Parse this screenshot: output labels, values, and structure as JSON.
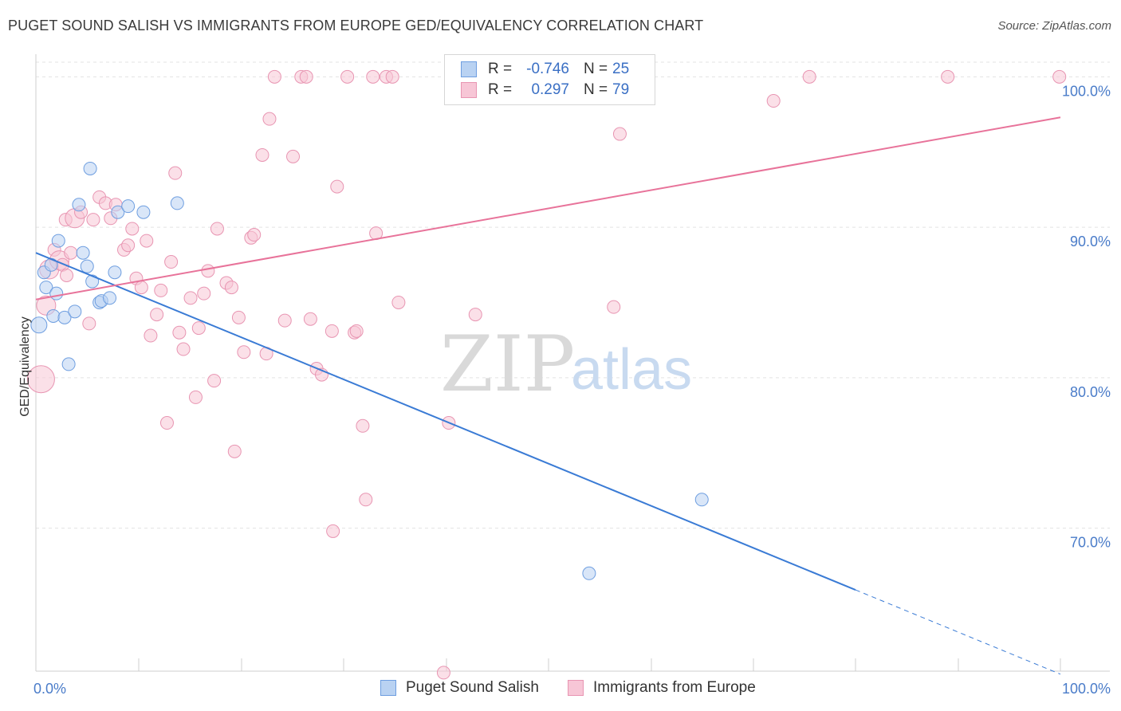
{
  "title": "PUGET SOUND SALISH VS IMMIGRANTS FROM EUROPE GED/EQUIVALENCY CORRELATION CHART",
  "source": "Source: ZipAtlas.com",
  "watermark": {
    "zip": "ZIP",
    "atlas": "atlas"
  },
  "colors": {
    "blue": "#3a7bd5",
    "blue_fill": "#b9d2f2",
    "pink": "#e8739a",
    "pink_fill": "#f7c6d6",
    "tick_text": "#4a7cc9"
  },
  "legend": {
    "rows": [
      {
        "r_label": "R =",
        "r_value": "-0.746",
        "n_label": "N =",
        "n_value": "25"
      },
      {
        "r_label": "R =",
        "r_value": "0.297",
        "n_label": "N =",
        "n_value": "79"
      }
    ]
  },
  "bottom_legend": [
    "Puget Sound Salish",
    "Immigrants from Europe"
  ],
  "chart_data": {
    "type": "scatter",
    "title": "PUGET SOUND SALISH VS IMMIGRANTS FROM EUROPE GED/EQUIVALENCY CORRELATION CHART",
    "xlabel": "",
    "ylabel": "GED/Equivalency",
    "x_tick_labels": [
      "0.0%",
      "100.0%"
    ],
    "y_tick_labels": [
      "100.0%",
      "90.0%",
      "80.0%",
      "70.0%"
    ],
    "y_ticks": [
      100,
      90,
      80,
      70
    ],
    "xlim": [
      0,
      100
    ],
    "ylim": [
      60.5,
      101.5
    ],
    "grid": true,
    "legend_position": "top-center",
    "series": [
      {
        "name": "Puget Sound Salish",
        "color": "#3a7bd5",
        "trend": {
          "x": [
            0,
            80
          ],
          "y": [
            88.3,
            65.9
          ],
          "dashed_to": [
            100,
            60.3
          ]
        },
        "points": [
          [
            0.3,
            83.5
          ],
          [
            0.8,
            87.0
          ],
          [
            1.0,
            86.0
          ],
          [
            1.5,
            87.5
          ],
          [
            1.7,
            84.1
          ],
          [
            2.0,
            85.6
          ],
          [
            2.2,
            89.1
          ],
          [
            2.8,
            84.0
          ],
          [
            3.2,
            80.9
          ],
          [
            3.8,
            84.4
          ],
          [
            4.2,
            91.5
          ],
          [
            4.6,
            88.3
          ],
          [
            5.0,
            87.4
          ],
          [
            5.3,
            93.9
          ],
          [
            5.5,
            86.4
          ],
          [
            6.2,
            85.0
          ],
          [
            6.4,
            85.1
          ],
          [
            7.2,
            85.3
          ],
          [
            7.7,
            87.0
          ],
          [
            8.0,
            91.0
          ],
          [
            9.0,
            91.4
          ],
          [
            10.5,
            91.0
          ],
          [
            13.8,
            91.6
          ],
          [
            54.0,
            67.0
          ],
          [
            65.0,
            71.9
          ]
        ]
      },
      {
        "name": "Immigrants from Europe",
        "color": "#e8739a",
        "trend": {
          "x": [
            0,
            100
          ],
          "y": [
            85.2,
            97.3
          ]
        },
        "points": [
          [
            0.5,
            79.9
          ],
          [
            1.0,
            84.8
          ],
          [
            1.3,
            87.2
          ],
          [
            1.8,
            88.5
          ],
          [
            2.3,
            87.8
          ],
          [
            2.6,
            87.5
          ],
          [
            2.9,
            90.5
          ],
          [
            3.4,
            88.3
          ],
          [
            3.8,
            90.6
          ],
          [
            4.4,
            91.0
          ],
          [
            5.2,
            83.6
          ],
          [
            5.6,
            90.5
          ],
          [
            6.2,
            92.0
          ],
          [
            6.8,
            91.6
          ],
          [
            7.3,
            90.6
          ],
          [
            7.8,
            91.5
          ],
          [
            8.6,
            88.5
          ],
          [
            9.0,
            88.8
          ],
          [
            9.4,
            89.9
          ],
          [
            9.8,
            86.6
          ],
          [
            10.3,
            86.0
          ],
          [
            10.8,
            89.1
          ],
          [
            11.2,
            82.8
          ],
          [
            11.8,
            84.2
          ],
          [
            12.2,
            85.8
          ],
          [
            12.8,
            77.0
          ],
          [
            13.2,
            87.7
          ],
          [
            13.6,
            93.6
          ],
          [
            14.4,
            81.9
          ],
          [
            15.1,
            85.3
          ],
          [
            15.6,
            78.7
          ],
          [
            15.9,
            83.3
          ],
          [
            16.4,
            85.6
          ],
          [
            16.8,
            87.1
          ],
          [
            17.4,
            79.8
          ],
          [
            17.7,
            89.9
          ],
          [
            18.6,
            86.3
          ],
          [
            19.1,
            86.0
          ],
          [
            19.4,
            75.1
          ],
          [
            19.8,
            84.0
          ],
          [
            20.3,
            81.7
          ],
          [
            21.0,
            89.3
          ],
          [
            21.3,
            89.5
          ],
          [
            22.1,
            94.8
          ],
          [
            22.5,
            81.6
          ],
          [
            22.8,
            97.2
          ],
          [
            23.3,
            100.0
          ],
          [
            24.3,
            83.8
          ],
          [
            25.1,
            94.7
          ],
          [
            25.9,
            100.0
          ],
          [
            26.4,
            100.0
          ],
          [
            26.8,
            83.9
          ],
          [
            27.4,
            80.6
          ],
          [
            27.9,
            80.2
          ],
          [
            28.9,
            83.1
          ],
          [
            29.4,
            92.7
          ],
          [
            30.4,
            100.0
          ],
          [
            31.1,
            83.0
          ],
          [
            31.3,
            83.1
          ],
          [
            31.9,
            76.8
          ],
          [
            32.2,
            71.9
          ],
          [
            32.9,
            100.0
          ],
          [
            33.2,
            89.6
          ],
          [
            34.2,
            100.0
          ],
          [
            34.8,
            100.0
          ],
          [
            35.4,
            85.0
          ],
          [
            29.0,
            69.8
          ],
          [
            39.8,
            60.4
          ],
          [
            40.3,
            77.0
          ],
          [
            42.9,
            84.2
          ],
          [
            47.8,
            100.0
          ],
          [
            56.4,
            84.7
          ],
          [
            57.0,
            96.2
          ],
          [
            72.0,
            98.4
          ],
          [
            75.5,
            100.0
          ],
          [
            89.0,
            100.0
          ],
          [
            99.9,
            100.0
          ],
          [
            14.0,
            83.0
          ],
          [
            3.0,
            86.8
          ]
        ]
      }
    ]
  }
}
